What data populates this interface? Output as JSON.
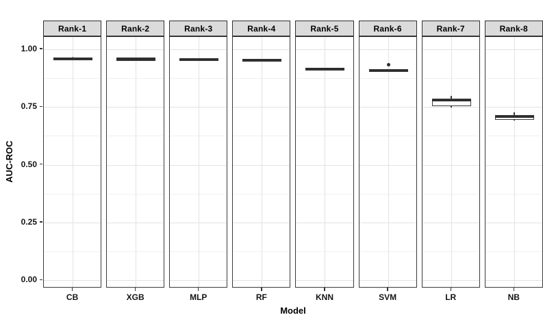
{
  "chart_data": {
    "type": "boxplot",
    "title": "",
    "xlabel": "Model",
    "ylabel": "AUC-ROC",
    "legend": "none",
    "grid": "major-and-minor",
    "ylim": [
      -0.035,
      1.053
    ],
    "yticks": {
      "values": [
        0.0,
        0.25,
        0.5,
        0.75,
        1.0
      ],
      "labels": [
        "0.00",
        "0.25",
        "0.50",
        "0.75",
        "1.00"
      ]
    },
    "facets": [
      {
        "label": "Rank-1",
        "model": "CB",
        "stats": {
          "whisker_low": 0.954,
          "q1": 0.9575,
          "median": 0.96,
          "q3": 0.9625,
          "whisker_high": 0.966
        },
        "outliers": []
      },
      {
        "label": "Rank-2",
        "model": "XGB",
        "stats": {
          "whisker_low": 0.953,
          "q1": 0.956,
          "median": 0.9585,
          "q3": 0.961,
          "whisker_high": 0.964
        },
        "outliers": []
      },
      {
        "label": "Rank-3",
        "model": "MLP",
        "stats": {
          "whisker_low": 0.951,
          "q1": 0.954,
          "median": 0.9565,
          "q3": 0.959,
          "whisker_high": 0.962
        },
        "outliers": []
      },
      {
        "label": "Rank-4",
        "model": "RF",
        "stats": {
          "whisker_low": 0.948,
          "q1": 0.9505,
          "median": 0.953,
          "q3": 0.9555,
          "whisker_high": 0.958
        },
        "outliers": []
      },
      {
        "label": "Rank-5",
        "model": "KNN",
        "stats": {
          "whisker_low": 0.91,
          "q1": 0.914,
          "median": 0.9165,
          "q3": 0.919,
          "whisker_high": 0.921
        },
        "outliers": []
      },
      {
        "label": "Rank-6",
        "model": "SVM",
        "stats": {
          "whisker_low": 0.9035,
          "q1": 0.9065,
          "median": 0.909,
          "q3": 0.9115,
          "whisker_high": 0.9135
        },
        "outliers": [
          0.932
        ]
      },
      {
        "label": "Rank-7",
        "model": "LR",
        "stats": {
          "whisker_low": 0.749,
          "q1": 0.753,
          "median": 0.778,
          "q3": 0.7875,
          "whisker_high": 0.7995
        },
        "outliers": []
      },
      {
        "label": "Rank-8",
        "model": "NB",
        "stats": {
          "whisker_low": 0.6925,
          "q1": 0.696,
          "median": 0.7075,
          "q3": 0.7165,
          "whisker_high": 0.7265
        },
        "outliers": []
      }
    ],
    "colors": {
      "strip_fill": "#DBDBDB",
      "strip_border": "#2e2e2e",
      "panel_border": "#3a3a3a",
      "box_stroke": "#3a3a3a",
      "box_fill": "#ffffff",
      "grid_major": "#E2E2E2",
      "grid_minor": "#F0F0F0",
      "background": "#ffffff"
    }
  }
}
